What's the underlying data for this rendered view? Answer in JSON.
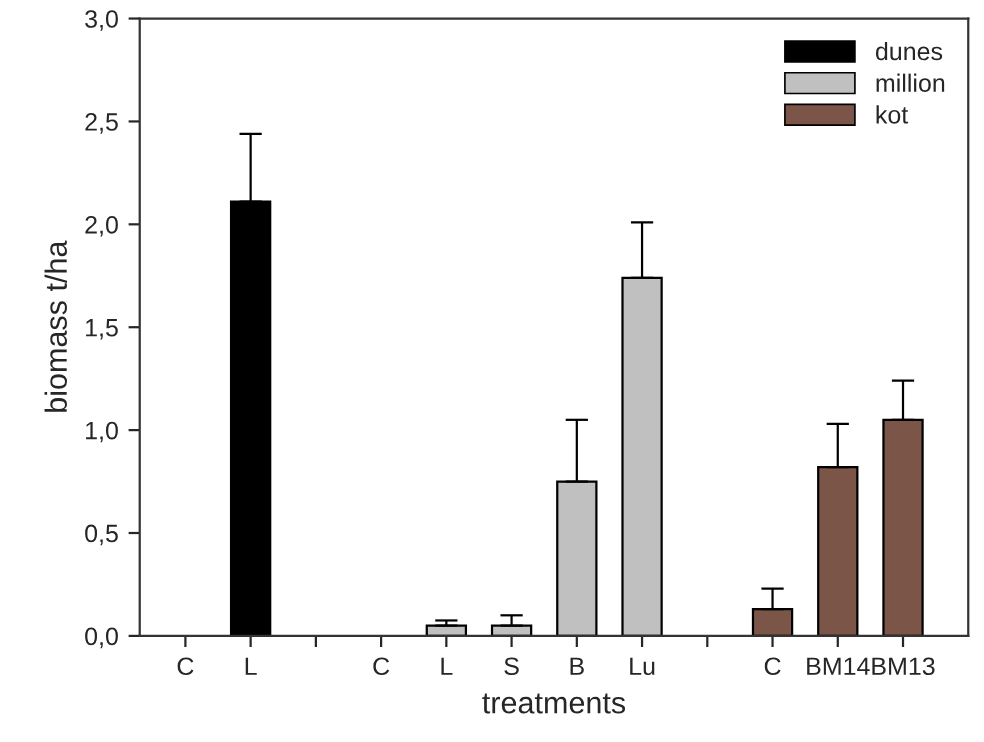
{
  "chart_data": {
    "type": "bar",
    "xlabel": "treatments",
    "ylabel": "biomass t/ha",
    "categories": [
      "C",
      "L",
      null,
      "C",
      "L",
      "S",
      "B",
      "Lu",
      null,
      "C",
      "BM14",
      "BM13"
    ],
    "series": [
      {
        "name": "dunes",
        "color": "#000000",
        "values": [
          null,
          2.11,
          null,
          null,
          null,
          null,
          null,
          null,
          null,
          null,
          null,
          null
        ],
        "errors": [
          null,
          [
            2.11,
            2.44
          ],
          null,
          null,
          null,
          null,
          null,
          null,
          null,
          null,
          null,
          null
        ]
      },
      {
        "name": "million",
        "color": "#c0c0c0",
        "values": [
          null,
          null,
          null,
          null,
          0.05,
          0.05,
          0.75,
          1.74,
          null,
          null,
          null,
          null
        ],
        "errors": [
          null,
          null,
          null,
          null,
          [
            0.05,
            0.075
          ],
          [
            0.05,
            0.1
          ],
          [
            0.75,
            1.05
          ],
          [
            1.74,
            2.01
          ],
          null,
          null,
          null,
          null
        ]
      },
      {
        "name": "kot",
        "color": "#7b5547",
        "values": [
          null,
          null,
          null,
          null,
          null,
          null,
          null,
          null,
          null,
          0.13,
          0.82,
          1.05
        ],
        "errors": [
          null,
          null,
          null,
          null,
          null,
          null,
          null,
          null,
          null,
          [
            0.13,
            0.23
          ],
          [
            0.82,
            1.03
          ],
          [
            1.05,
            1.24
          ]
        ]
      }
    ],
    "ylim": [
      0,
      3
    ],
    "yticks": [
      {
        "value": 0,
        "label": "0,0"
      },
      {
        "value": 0.5,
        "label": "0,5"
      },
      {
        "value": 1,
        "label": "1,0"
      },
      {
        "value": 1.5,
        "label": "1,5"
      },
      {
        "value": 2,
        "label": "2,0"
      },
      {
        "value": 2.5,
        "label": "2,5"
      },
      {
        "value": 3,
        "label": "3,0"
      }
    ],
    "legend": "top right",
    "grid": false
  }
}
